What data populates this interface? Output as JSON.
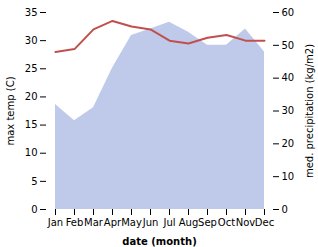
{
  "chart_data": {
    "type": "line",
    "categories": [
      "Jan",
      "Feb",
      "Mar",
      "Apr",
      "May",
      "Jun",
      "Jul",
      "Aug",
      "Sep",
      "Oct",
      "Nov",
      "Dec"
    ],
    "xlabel": "date (month)",
    "ylabel": "max temp (C)",
    "y2label": "med. precipitation (kg/m2)",
    "ylim": [
      0,
      35
    ],
    "yticks": [
      0,
      5,
      10,
      15,
      20,
      25,
      30,
      35
    ],
    "y2lim": [
      0,
      60
    ],
    "y2ticks": [
      0,
      10,
      20,
      30,
      40,
      50,
      60
    ],
    "series": [
      {
        "type": "area",
        "axis": "y2",
        "color": "#b8c4e8",
        "values": [
          32,
          27,
          31,
          43,
          53,
          55,
          57,
          54,
          50,
          50,
          55,
          48
        ]
      },
      {
        "type": "line",
        "color": "#c0504d",
        "values": [
          28,
          28.5,
          32,
          33.5,
          32.5,
          32,
          30,
          29.5,
          30.5,
          31,
          30,
          30
        ]
      }
    ]
  }
}
